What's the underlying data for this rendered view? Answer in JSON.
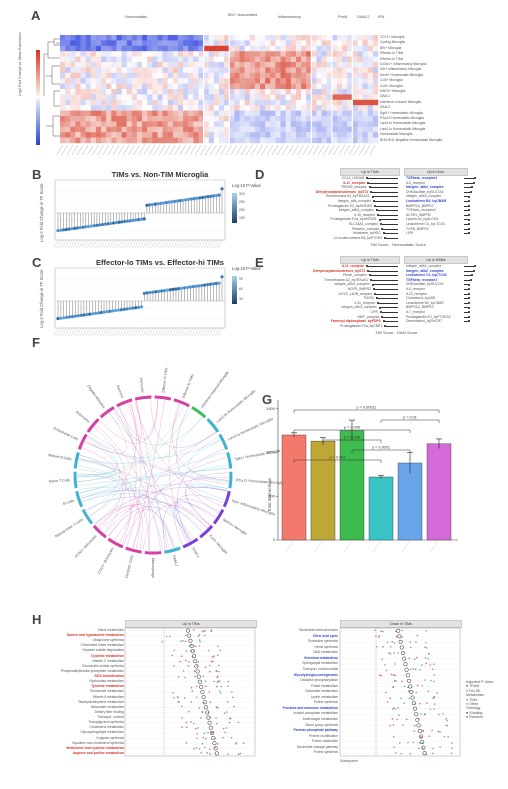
{
  "panels": {
    "a": "A",
    "b": "B",
    "c": "C",
    "d": "D",
    "e": "E",
    "f": "F",
    "g": "G",
    "h": "H"
  },
  "panel_a": {
    "col_groups": [
      "Homeostatic",
      "IBV+ Associated",
      "Inflammatory",
      "Prolif.",
      "DAM-2",
      "IFN"
    ],
    "row_labels": [
      "CD74+ Microglia",
      "Cycling Microglia",
      "IBV+ Microglia",
      "Effector-lo TIMs",
      "Effector-hi TIMs",
      "Cx3cr1+ Inflammatory Microglia",
      "Il1b+ Inflammatory Microglia",
      "Hexb+ Homeostatic Microglia",
      "Ccl3+ Microglia",
      "Ccl4+ Microglia",
      "MHCII+ Microglia",
      "DAM-1",
      "Interferon-Induced Microglia",
      "DAM-2",
      "Sgk1+ Homeostatic Microglia",
      "P2ry12 Homeostatic Microglia",
      "Lars2-hi Homeostatic Microglia",
      "Lars2-lo Homeostatic Microglia",
      "Homeostatic Microglia",
      "BHLHE41-Negative Homeostatic Microglia"
    ],
    "colorbar_label": "Log2 Fold Change vs. Mean Expression"
  },
  "panel_b": {
    "title": "TIMs vs. Non-TIM Microglia",
    "ylabel": "Log-2 Fold Change in TF Score",
    "legend_title": "Log-10 P-Value",
    "legend_ticks": [
      "300",
      "250",
      "200",
      "150"
    ]
  },
  "panel_c": {
    "title": "Effector-lo TIMs vs. Effector-hi TIMs",
    "ylabel": "Log-2 Fold Change in TF Score",
    "legend_title": "Log-10 P-Value",
    "legend_ticks": [
      "90",
      "60",
      "30"
    ]
  },
  "panel_d": {
    "left_header": "Up in TIMs",
    "right_header": "Up in Hom.",
    "left_items": [
      "CCL4_HGNA8",
      "IL11_receptor",
      "TREM2_receptor",
      "Dehydroepiandrosterone_byST2",
      "Thromboxane A2_byTBXAS1",
      "Integrin_aIIb_complex",
      "Prostaglandin E2_byAKR1B1",
      "integrin_aIIb3_complex",
      "IL15_receptor",
      "Prostaglandin E2a_byAKR1B1",
      "SLC18A1_complex",
      "Pleiomin_complex",
      "Histamine_byHDC",
      "12-oxoleucotriene B4_byPTGR1"
    ],
    "right_items": [
      "TGFbeta_receptor1",
      "IL6_receptor",
      "Integrin_aIIb2_complex",
      "DHEAsulfate_bySULT2A",
      "integrin_aIIb3_complex",
      "Leukotriene B4_byCBAR",
      "BMPR1A_BMPR2",
      "TGFbeta_receptor2",
      "ACVR1_BMPR2",
      "Lipoxin A4_byALOX5",
      "Leukotriene C4_byLTC4S",
      "TGFB_BMPR2",
      "LIFR"
    ],
    "axis": "TIM Score - Homeostatic Score"
  },
  "panel_e": {
    "left_header": "Up in TIMs",
    "right_header": "Up in DAMs",
    "left_items": [
      "IL11_receptor",
      "Dehydroepiandrosterone_byST2",
      "Plexin_complex",
      "Thromboxane A2_byTBXAS1",
      "integrin_aIIb3_complex",
      "NGFR_BMPR2",
      "ACVR_1A2B_receptor",
      "TNLR4",
      "IL11_receptor",
      "integrin_aIIb3_complex",
      "LIFR",
      "BMP_complex",
      "Farnesyl diphosphate_byFDPS",
      "Prostaglandin F2a_byCBR1"
    ],
    "right_items": [
      "Integrin_aIIb1_complex",
      "integrin_aIIb2_complex",
      "Leukotriene C4_byLTC4S",
      "TGFbeta_receptor1",
      "DHEAsulfate_bySULT2A",
      "IL6_receptor",
      "IL22_receptor",
      "Cholesterol_byLBR",
      "Leukotriene B4_byCBAR",
      "BMPR1A_BMPR2",
      "IL7_receptor",
      "Prostaglandin E2_byPTGES2",
      "Desmosterol_byDHCR7"
    ],
    "axis": "TIM Score - DAM Score"
  },
  "panel_f": {
    "sectors": [
      "Effector-hi TIMs",
      "Effector-lo TIMs",
      "Interferon-Induced Microglia",
      "Lars2-hi Homeostatic Microglia",
      "Lars2-lo Homeostatic Microglia",
      "Sgk1+ Homeostatic Microglia",
      "P2ry12 Homeostatic Microglia",
      "Il1b+ Inflammatory Microglia",
      "MHCII+ Microglia",
      "Ccl3+ Microglia",
      "DAM-1",
      "DAM-2",
      "Macrophage",
      "Dendritic Cells",
      "CD14+ Monocytes",
      "FCN1+ Monocytes",
      "Natural Killer T-Cells",
      "B Cells",
      "Naive T Cells",
      "Mature B Cells",
      "Endothelial Cells",
      "Astrocytes",
      "Oligodendrocytes",
      "Neurons",
      "Pericytes"
    ]
  },
  "panel_g": {
    "ylabel": "Total Interactions",
    "pvals": [
      "p = 0.00011",
      "p = 0.01",
      "p = 0.006",
      "p = 0.006",
      "p = 0.0001",
      "p = 0.001"
    ]
  },
  "panel_h": {
    "left_header": "Up in TIMs",
    "right_header": "Down in TIMs",
    "left_items": [
      "Sterol metabolism",
      "Taurine and hypotaurine metabolism",
      "Ubiquinone synthesis",
      "Chlorinated folate metabolism",
      "Heparan sulfate degradation",
      "Cysteine metabolism",
      "Vitamin C metabolism",
      "Chondroitin sulfate synthesis",
      "Phosphatidylinositol phosphate metabolism",
      "ROS detoxification",
      "Hyaluronan metabolism",
      "Tyrosine metabolism",
      "Eicosanoid metabolism",
      "Vitamin A metabolism",
      "Tetrahydrobiopterin metabolism",
      "Butanoate metabolism",
      "Dietary fiber binding",
      "Transport, nuclear",
      "Triacylglycerol synthesis",
      "Cholesterol metabolism",
      "Glycosphingolipid metabolism",
      "N-glycan synthesis",
      "Squalene and cholesterol synthesis",
      "Methionine and cysteine metabolism",
      "Arginine and proline metabolism"
    ],
    "right_items": [
      "Nucleotide interconversion",
      "Citric acid cycle",
      "Pyrimidine synthesis",
      "Heme synthesis",
      "NAD metabolism",
      "Selenium metabolism",
      "Sphingolipid metabolism",
      "Transport, mitochondrial",
      "Glycolysis/gluconeogenesis",
      "Oxidative phosphorylation",
      "Folate metabolism",
      "Glutamate metabolism",
      "Lysine metabolism",
      "Purine synthesis",
      "Fructose and mannose metabolism",
      "Inositol phosphate metabolism",
      "Aminosugar metabolism",
      "Blood group synthesis",
      "Pentose phosphate pathway",
      "Protein modification",
      "Purine catabolism",
      "Nucleotide salvage pathway",
      "Purine synthesis"
    ],
    "legend_title": "Adjusted P-Value",
    "legend_items": [
      "TRAM",
      "FALSE",
      "Metabolism",
      "TIMs",
      "Other",
      "Ontology",
      "Shading",
      "Random"
    ],
    "axis": "Subsystem"
  },
  "colors": {
    "red": "#d73027",
    "blue": "#4575b4",
    "pink": "#d63fa4",
    "green": "#3fbf5a",
    "purple": "#7b3fd6",
    "cyan": "#3fb2cf"
  }
}
